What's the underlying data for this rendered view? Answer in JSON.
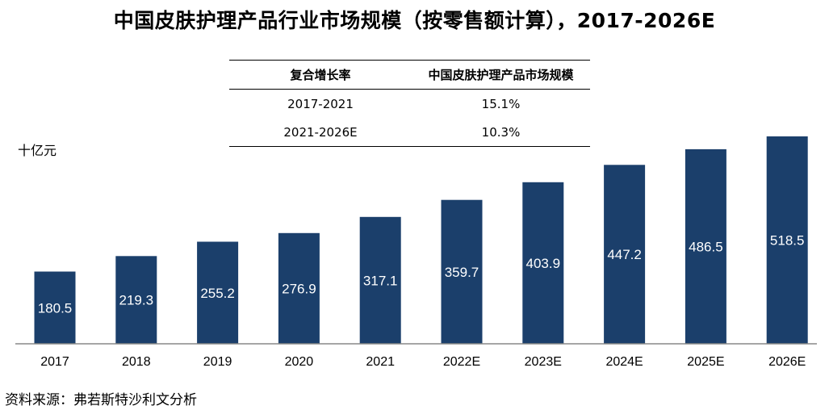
{
  "title": "中国皮肤护理产品行业市场规模（按零售额计算），2017-2026E",
  "cagr_table": {
    "headers": [
      "复合增长率",
      "中国皮肤护理产品市场规模"
    ],
    "rows": [
      [
        "2017-2021",
        "15.1%"
      ],
      [
        "2021-2026E",
        "10.3%"
      ]
    ]
  },
  "source": "资料来源：弗若斯特沙利文分析",
  "chart_data": {
    "type": "bar",
    "title": "中国皮肤护理产品行业市场规模（按零售额计算），2017-2026E",
    "ylabel": "十亿元",
    "xlabel": "",
    "categories": [
      "2017",
      "2018",
      "2019",
      "2020",
      "2021",
      "2022E",
      "2023E",
      "2024E",
      "2025E",
      "2026E"
    ],
    "values": [
      180.5,
      219.3,
      255.2,
      276.9,
      317.1,
      359.7,
      403.9,
      447.2,
      486.5,
      518.5
    ],
    "data_labels": [
      "180.5",
      "219.3",
      "255.2",
      "276.9",
      "317.1",
      "359.7",
      "403.9",
      "447.2",
      "486.5",
      "518.5"
    ],
    "ylim": [
      0,
      518.5
    ],
    "grid": false,
    "legend": "none",
    "bar_color": "#1b3f6b",
    "label_color": "#ffffff"
  }
}
